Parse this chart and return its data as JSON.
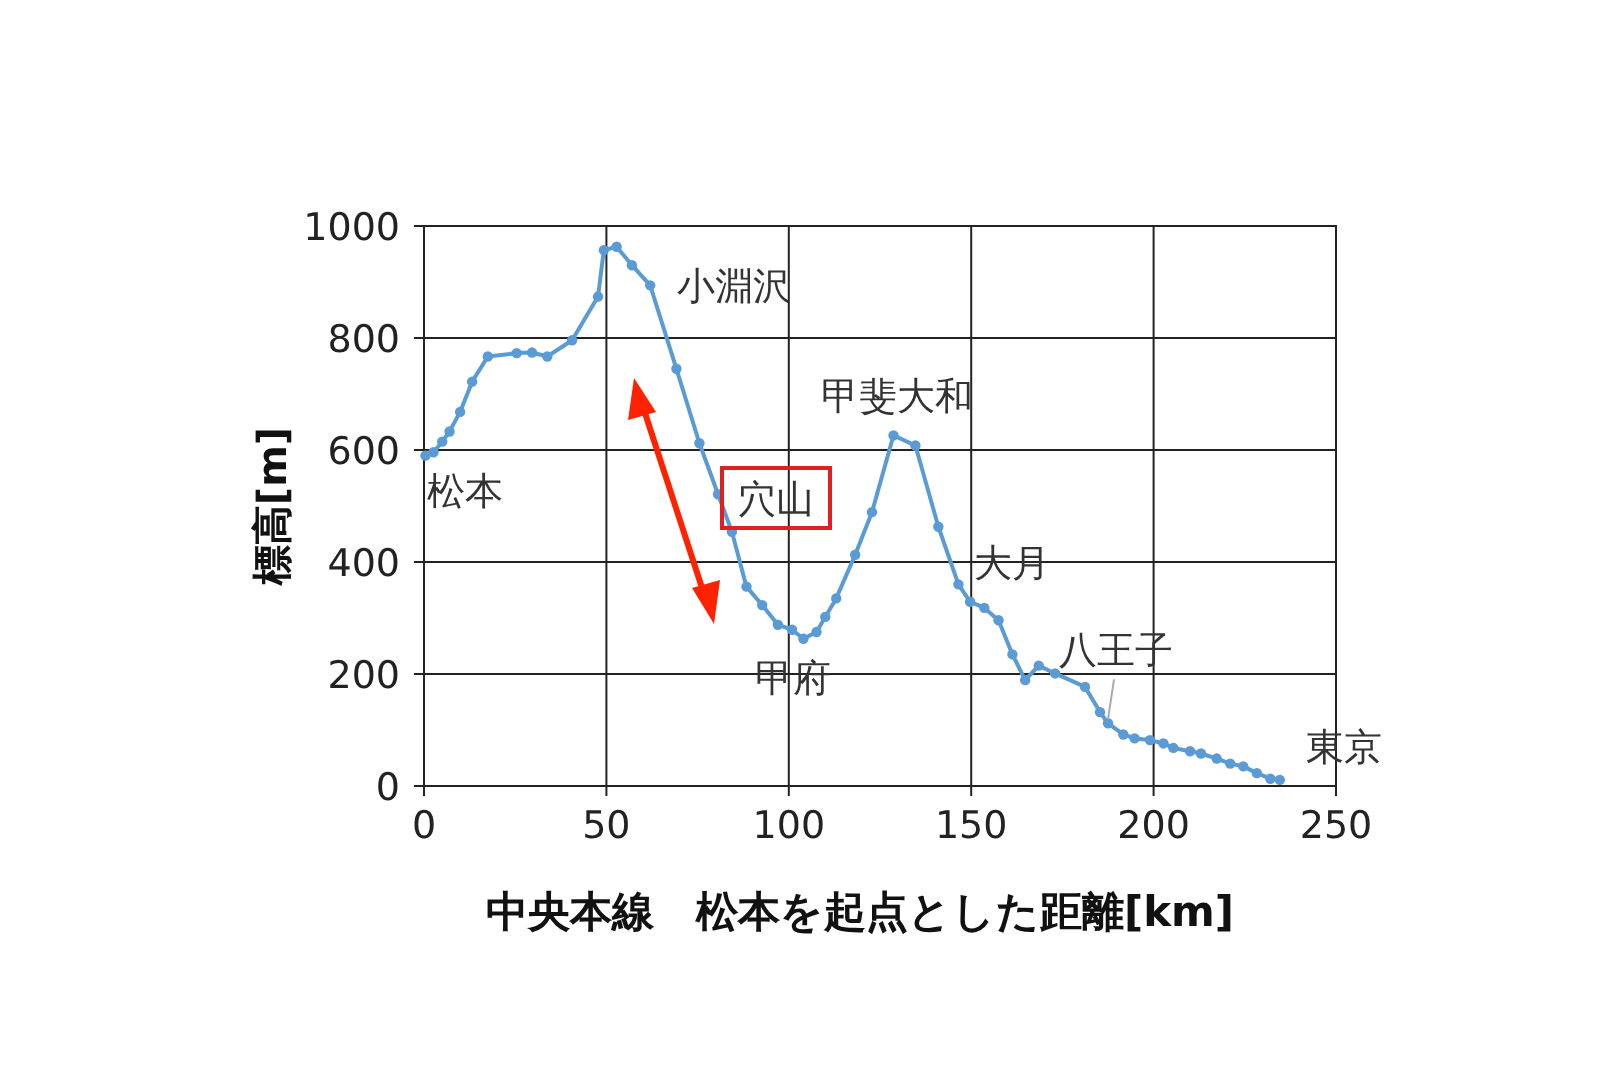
{
  "chart_data": {
    "type": "line",
    "xlabel": "中央本線　松本を起点とした距離[km]",
    "ylabel": "標高[m]",
    "xlim": [
      0,
      250
    ],
    "ylim": [
      0,
      1000
    ],
    "xticks": [
      0,
      50,
      100,
      150,
      200,
      250
    ],
    "yticks": [
      0,
      200,
      400,
      600,
      800,
      1000
    ],
    "grid": true,
    "marker": "circle",
    "line_style": "solid",
    "series": [
      {
        "color": "#5b9bd5",
        "x": [
          0.4,
          2.6,
          5,
          7,
          9.9,
          13.2,
          17.5,
          25.4,
          29.6,
          33.8,
          40.6,
          47.7,
          49.3,
          52.8,
          57,
          62,
          69.2,
          75.5,
          80.6,
          84.4,
          88.4,
          92.7,
          97,
          100.9,
          104,
          107.6,
          110,
          113,
          118.2,
          122.8,
          128.7,
          134.7,
          141,
          146.5,
          149.7,
          153.6,
          157.5,
          161.3,
          164.8,
          168.5,
          173,
          181.2,
          185.3,
          187.5,
          191.7,
          194.8,
          199,
          202.7,
          205.4,
          210,
          213,
          217.3,
          221,
          224.6,
          228.3,
          232,
          234.6
        ],
        "values": [
          590,
          596,
          615,
          633,
          668,
          722,
          767,
          773,
          774,
          767,
          796,
          874,
          957,
          963,
          930,
          894,
          745,
          612,
          521,
          454,
          356,
          323,
          288,
          279,
          263,
          275,
          302,
          335,
          413,
          489,
          626,
          608,
          463,
          360,
          329,
          318,
          296,
          235,
          189,
          215,
          201,
          177,
          132,
          112,
          92,
          85,
          82,
          76,
          68,
          62,
          58,
          49,
          40,
          35,
          23,
          13,
          11
        ]
      }
    ],
    "annotations": [
      {
        "text": "松本",
        "x": 0.4,
        "y": 590
      },
      {
        "text": "小淵沢",
        "x": 62,
        "y": 894
      },
      {
        "text": "穴山",
        "x": 80.6,
        "y": 521
      },
      {
        "text": "甲府",
        "x": 104,
        "y": 263
      },
      {
        "text": "甲斐大和",
        "x": 128.7,
        "y": 626
      },
      {
        "text": "大月",
        "x": 146.5,
        "y": 360
      },
      {
        "text": "八王子",
        "x": 187.5,
        "y": 112
      },
      {
        "text": "東京",
        "x": 234.6,
        "y": 11
      }
    ]
  }
}
